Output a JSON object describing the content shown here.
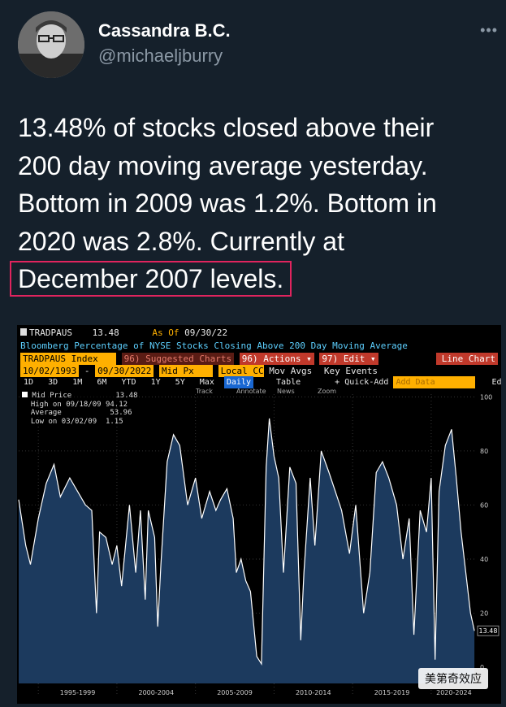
{
  "header": {
    "name": "Cassandra B.C.",
    "handle": "@michaeljburry",
    "more_icon": "more-icon"
  },
  "tweet": {
    "lines": [
      "13.48% of stocks closed above their",
      "200 day moving average yesterday.",
      "Bottom in 2009 was 1.2%. Bottom in",
      "2020 was 2.8%. Currently at"
    ],
    "highlight": "December 2007 levels.",
    "highlight_color": "#e0245e"
  },
  "terminal": {
    "ticker": "TRADPAUS",
    "ticker_value": "13.48",
    "as_of_label": "As Of",
    "as_of_date": "09/30/22",
    "description": "Bloomberg Percentage of NYSE Stocks Closing Above 200 Day Moving Average",
    "security": "TRADPAUS Index",
    "suggested": "96) Suggested Charts",
    "actions": "96) Actions ▾",
    "edit": "97) Edit ▾",
    "line_chart": "Line Chart",
    "date_from": "10/02/1993",
    "date_to": "09/30/2022",
    "field": "Mid Px",
    "currency": "Local CCY",
    "mov_avgs": "Mov Avgs",
    "key_events": "Key Events",
    "periods": [
      "1D",
      "3D",
      "1M",
      "6M",
      "YTD",
      "1Y",
      "5Y",
      "Max"
    ],
    "frequency": "Daily",
    "table": "Table",
    "quick_add": "+ Quick-Add",
    "add_data": "Add Data",
    "edit_chart": "Edit Chart",
    "tools": [
      "Track",
      "Annotate",
      "News",
      "Zoom"
    ],
    "legend": {
      "series": "Mid Price",
      "series_value": "13.48",
      "high_label": "High on 09/18/09",
      "high_value": "94.12",
      "avg_label": "Average",
      "avg_value": "53.96",
      "low_label": "Low on 03/02/09",
      "low_value": "1.15"
    },
    "last_value_tag": "13.48",
    "watermark": "美第奇效应"
  },
  "chart_data": {
    "type": "area",
    "title": "Bloomberg Percentage of NYSE Stocks Closing Above 200 Day Moving Average",
    "ylim": [
      -6,
      101
    ],
    "y_ticks": [
      "100",
      "80",
      "60",
      "40",
      "20",
      "0"
    ],
    "x_ticks": [
      "1995-1999",
      "2000-2004",
      "2005-2009",
      "2010-2014",
      "2015-2019",
      "2020-2024"
    ],
    "x": [
      1993.75,
      1994.2,
      1994.5,
      1995.0,
      1995.5,
      1996.0,
      1996.4,
      1997.0,
      1997.5,
      1998.0,
      1998.4,
      1998.7,
      1998.9,
      1999.3,
      1999.7,
      2000.0,
      2000.3,
      2000.8,
      2001.2,
      2001.5,
      2001.8,
      2002.0,
      2002.4,
      2002.6,
      2002.8,
      2003.2,
      2003.6,
      2004.0,
      2004.5,
      2005.0,
      2005.4,
      2005.9,
      2006.3,
      2006.6,
      2007.0,
      2007.4,
      2007.6,
      2007.9,
      2008.2,
      2008.5,
      2008.9,
      2009.2,
      2009.5,
      2009.7,
      2010.0,
      2010.3,
      2010.6,
      2011.0,
      2011.4,
      2011.7,
      2011.9,
      2012.3,
      2012.6,
      2013.0,
      2013.5,
      2013.9,
      2014.3,
      2014.8,
      2015.2,
      2015.7,
      2016.1,
      2016.5,
      2016.9,
      2017.3,
      2017.8,
      2018.2,
      2018.6,
      2018.9,
      2019.3,
      2019.7,
      2020.0,
      2020.25,
      2020.5,
      2020.9,
      2021.3,
      2021.6,
      2021.9,
      2022.2,
      2022.5,
      2022.75
    ],
    "y": [
      62,
      45,
      38,
      55,
      68,
      75,
      63,
      70,
      65,
      60,
      58,
      20,
      50,
      48,
      38,
      45,
      30,
      60,
      35,
      58,
      25,
      58,
      48,
      15,
      38,
      76,
      86,
      82,
      60,
      70,
      55,
      65,
      58,
      62,
      66,
      55,
      35,
      40,
      32,
      28,
      4,
      1.2,
      74,
      92,
      78,
      70,
      35,
      74,
      68,
      10,
      35,
      70,
      45,
      80,
      72,
      65,
      58,
      42,
      60,
      20,
      35,
      72,
      76,
      70,
      60,
      40,
      55,
      12,
      58,
      50,
      70,
      2.8,
      65,
      82,
      88,
      70,
      50,
      35,
      20,
      13.48
    ],
    "last_value": 13.48,
    "colors": {
      "fill": "#1c3a5e",
      "line": "#ffffff",
      "background": "#000000"
    }
  }
}
